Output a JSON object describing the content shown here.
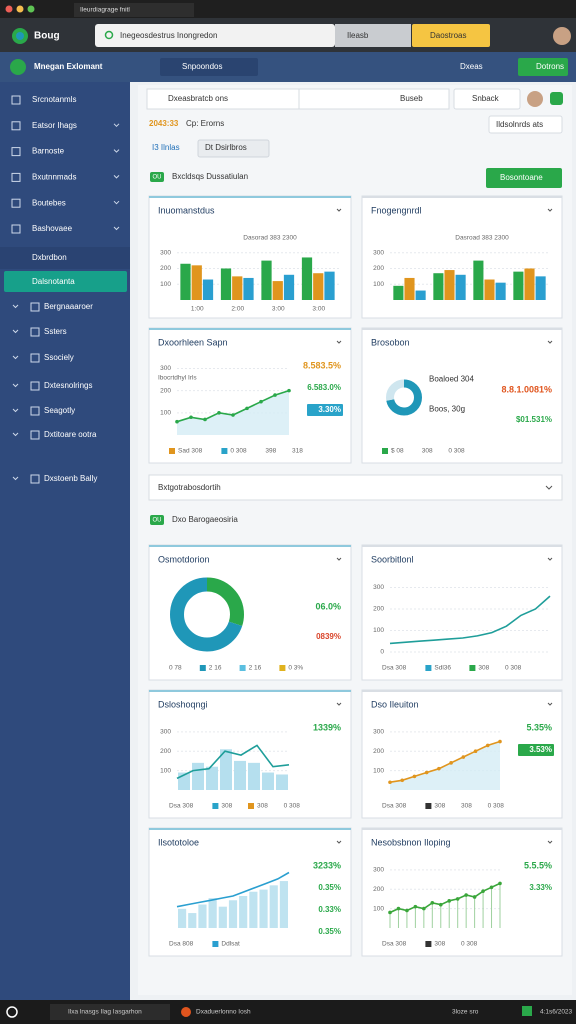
{
  "browser": {
    "tab": "Ileurdiagrage fnitl",
    "brand": "Boug",
    "address": "Inegeosdestrus Inongredon",
    "field": "Ileasb",
    "button": "Daostroas"
  },
  "app": {
    "name": "Mnegan Exlomant",
    "search": "Snpoondos",
    "user": "Dxeas",
    "action": "Dotrons"
  },
  "sidebar": {
    "items": [
      "Srcnotanmls",
      "Eatsor Ihags",
      "Barnoste",
      "Bxutnnmads",
      "Boutebes",
      "Bashovaee"
    ],
    "section": "Dxbrdbon",
    "active": "Dalsnotanta",
    "sub": [
      "Bergnaaaroer",
      "Ssters",
      "Ssociely",
      "Dxtesnolrings",
      "Seagotly",
      "Dxtitoare ootra",
      "Dxstoenb Bally"
    ]
  },
  "toolbar": {
    "search": "Dxeasbratcb ons",
    "select": "Buseb",
    "button": "Snback"
  },
  "summary": {
    "stat": "2043:33",
    "note": "Cp: Erorns",
    "dropdown": "Ildsolnrds ats",
    "tabs": [
      "I3 Ilnlas",
      "Dt Dsirlbros"
    ],
    "badge": "OU",
    "heading": "Bxcldsqs Dussatiulan",
    "button": "Bosontoane"
  },
  "collapse": "Bxtgotrabosdortih",
  "section2": {
    "badge": "OU",
    "heading": "Dxo Barogaeosiria"
  },
  "cards": [
    {
      "type": "bar",
      "title": "Inuomanstdus",
      "subtitle": "Dasorad 383 2300",
      "ylim": [
        0,
        330
      ],
      "yticks": [
        100,
        200,
        300
      ],
      "categories": [
        "1:00",
        "2:00",
        "3:00",
        "3:00"
      ],
      "series": [
        {
          "color": "#2aa84a",
          "values": [
            230,
            200,
            250,
            270
          ]
        },
        {
          "color": "#e0951e",
          "values": [
            220,
            150,
            120,
            170
          ]
        },
        {
          "color": "#2a9fd0",
          "values": [
            130,
            140,
            160,
            180
          ]
        }
      ]
    },
    {
      "type": "bar",
      "title": "Fnogengnrdl",
      "subtitle": "Dasroad 383 2300",
      "ylim": [
        0,
        330
      ],
      "yticks": [
        100,
        200,
        300
      ],
      "series": [
        {
          "color": "#2aa84a",
          "values": [
            90,
            170,
            250,
            180
          ]
        },
        {
          "color": "#e0951e",
          "values": [
            140,
            190,
            130,
            200
          ]
        },
        {
          "color": "#2a9fd0",
          "values": [
            60,
            160,
            110,
            150
          ]
        }
      ]
    },
    {
      "type": "line",
      "title": "Dxoorhleen Sapn",
      "note": "Ibocrtdhyl Irls",
      "ylim": [
        0,
        320
      ],
      "yticks": [
        100,
        200,
        300
      ],
      "markers": true,
      "area": true,
      "series": [
        {
          "color": "#2aa84a",
          "values": [
            60,
            80,
            70,
            100,
            90,
            120,
            150,
            180,
            200
          ]
        }
      ],
      "stats": [
        {
          "label": "8.583.5%",
          "color": "#e0951e"
        },
        {
          "label": "6.583.0%",
          "color": "#2aa84a"
        },
        {
          "label": "3.30%",
          "color": "#ffffff",
          "badge": "#29a3c9"
        }
      ],
      "legend": [
        {
          "label": "Sad 308",
          "color": "#e0951e"
        },
        {
          "label": "0 308",
          "color": "#29a3c9"
        },
        {
          "label": "398",
          "color": null
        },
        {
          "label": "318",
          "color": null
        }
      ]
    },
    {
      "type": "donut",
      "title": "Brosobon",
      "values": [
        72,
        28
      ],
      "colors": [
        "#1f97b8",
        "#cfe6ef"
      ],
      "tags": [
        "Boaloed 304",
        "Boos, 30g"
      ],
      "stats": [
        {
          "label": "8.8.1.0081%",
          "color": "#e0551e"
        },
        {
          "label": "$01.531%",
          "color": "#2aa84a"
        }
      ],
      "legend": [
        {
          "label": "$ 08",
          "color": "#2aa84a"
        },
        {
          "label": "308",
          "color": null
        },
        {
          "label": "0 308",
          "color": null
        }
      ]
    },
    {
      "type": "donut",
      "title": "Osmotdorion",
      "values": [
        30,
        70
      ],
      "colors": [
        "#2aa84a",
        "#1f97b8"
      ],
      "stats": [
        {
          "label": "06.0%",
          "color": "#2aa84a"
        },
        {
          "label": "0839%",
          "color": "#d9452b"
        }
      ],
      "legend": [
        {
          "label": "0 78",
          "color": null
        },
        {
          "label": "2 16",
          "color": "#1f97b8"
        },
        {
          "label": "2 16",
          "color": "#5bbfe0"
        },
        {
          "label": "0 3%",
          "color": "#e0b21e"
        }
      ]
    },
    {
      "type": "line",
      "title": "Soorbitlonl",
      "ylim": [
        0,
        330
      ],
      "yticks": [
        0,
        100,
        200,
        300
      ],
      "series": [
        {
          "color": "#1f9e9a",
          "values": [
            40,
            45,
            50,
            55,
            60,
            65,
            75,
            90,
            120,
            170,
            200,
            260
          ]
        }
      ],
      "legend": [
        {
          "label": "Dsa 308",
          "color": null
        },
        {
          "label": "Sdl36",
          "color": "#29a3c9"
        },
        {
          "label": "308",
          "color": "#2aa84a"
        },
        {
          "label": "0 308",
          "color": null
        }
      ]
    },
    {
      "type": "combo",
      "title": "Dsloshoqngi",
      "ylim": [
        0,
        330
      ],
      "yticks": [
        100,
        200,
        300
      ],
      "series": [
        {
          "kind": "bar",
          "color": "#b5dfee",
          "values": [
            90,
            140,
            120,
            210,
            150,
            140,
            90,
            80
          ]
        },
        {
          "kind": "line",
          "color": "#1f9e9a",
          "values": [
            60,
            100,
            110,
            200,
            180,
            230,
            120,
            130
          ]
        }
      ],
      "stats": [
        {
          "label": "1339%",
          "color": "#2aa84a"
        }
      ],
      "legend": [
        {
          "label": "Dsa 308",
          "color": null
        },
        {
          "label": "308",
          "color": "#29a3c9"
        },
        {
          "label": "308",
          "color": "#e0951e"
        },
        {
          "label": "0 308",
          "color": null
        }
      ]
    },
    {
      "type": "line",
      "title": "Dso Ileuiton",
      "ylim": [
        0,
        330
      ],
      "yticks": [
        100,
        200,
        300
      ],
      "markers": true,
      "area": true,
      "series": [
        {
          "color": "#e0951e",
          "values": [
            40,
            50,
            70,
            90,
            110,
            140,
            170,
            200,
            230,
            250
          ]
        }
      ],
      "stats": [
        {
          "label": "5.35%",
          "color": "#2aa84a"
        },
        {
          "label": "3.53%",
          "color": "#ffffff",
          "badge": "#2aa84a"
        }
      ],
      "legend": [
        {
          "label": "Dsa 308",
          "color": null
        },
        {
          "label": "308",
          "color": "#333333"
        },
        {
          "label": "308",
          "color": null
        },
        {
          "label": "0 308",
          "color": null
        }
      ]
    },
    {
      "type": "combo",
      "title": "Ilsototoloe",
      "ylim": [
        0,
        300
      ],
      "series": [
        {
          "kind": "bar",
          "color": "#bfe3f0",
          "values": [
            90,
            70,
            110,
            140,
            100,
            130,
            150,
            170,
            180,
            200,
            220
          ]
        },
        {
          "kind": "line",
          "color": "#2a9fd0",
          "values": [
            100,
            110,
            120,
            130,
            140,
            150,
            170,
            190,
            210,
            230,
            260
          ]
        }
      ],
      "stats": [
        {
          "label": "3233%",
          "color": "#2aa84a"
        },
        {
          "label": "0.35%",
          "color": "#2aa84a"
        },
        {
          "label": "0.33%",
          "color": "#2aa84a"
        },
        {
          "label": "0.35%",
          "color": "#2aa84a"
        }
      ],
      "legend": [
        {
          "label": "Dsa 808",
          "color": null
        },
        {
          "label": "Ddlsat",
          "color": "#2a9fd0"
        }
      ]
    },
    {
      "type": "line",
      "title": "Nesobsbnon Iloping",
      "ylim": [
        0,
        330
      ],
      "yticks": [
        100,
        200,
        300
      ],
      "markers": true,
      "drops": true,
      "series": [
        {
          "color": "#3aa63a",
          "values": [
            80,
            100,
            90,
            110,
            100,
            130,
            120,
            140,
            150,
            170,
            160,
            190,
            210,
            230
          ]
        }
      ],
      "stats": [
        {
          "label": "5.5.5%",
          "color": "#2aa84a"
        },
        {
          "label": "3.33%",
          "color": "#2aa84a"
        }
      ],
      "legend": [
        {
          "label": "Dsa 308",
          "color": null
        },
        {
          "label": "308",
          "color": "#333333"
        },
        {
          "label": "0 308",
          "color": null
        }
      ]
    }
  ],
  "taskbar": {
    "items": [
      "Ilxa lnasgs Ilag Iasgarhon",
      "Dxaduerlonno Iosh"
    ],
    "right": "3loze sro",
    "clock": "4:1s6/2023"
  }
}
